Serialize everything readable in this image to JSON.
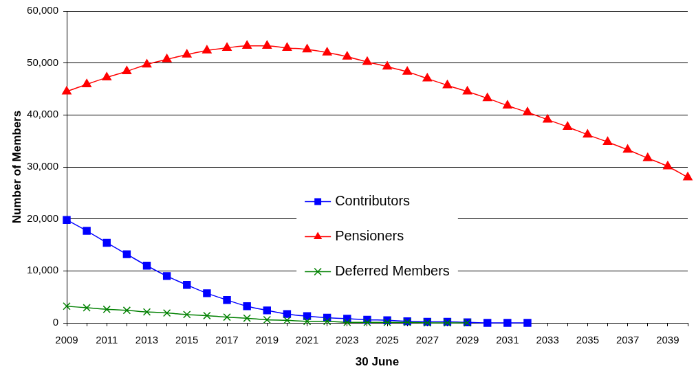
{
  "chart_data": {
    "type": "line",
    "xlabel": "30 June",
    "ylabel": "Number of Members",
    "xlim": [
      2009,
      2040
    ],
    "xticks": [
      2009,
      {
        "value": 2010,
        "label": null
      },
      2011,
      {
        "value": 2012,
        "label": null
      },
      2013,
      {
        "value": 2014,
        "label": null
      },
      2015,
      {
        "value": 2016,
        "label": null
      },
      2017,
      {
        "value": 2018,
        "label": null
      },
      2019,
      {
        "value": 2020,
        "label": null
      },
      2021,
      {
        "value": 2022,
        "label": null
      },
      2023,
      {
        "value": 2024,
        "label": null
      },
      2025,
      {
        "value": 2026,
        "label": null
      },
      2027,
      {
        "value": 2028,
        "label": null
      },
      2029,
      {
        "value": 2030,
        "label": null
      },
      2031,
      {
        "value": 2032,
        "label": null
      },
      2033,
      {
        "value": 2034,
        "label": null
      },
      2035,
      {
        "value": 2036,
        "label": null
      },
      2037,
      {
        "value": 2038,
        "label": null
      },
      2039,
      {
        "value": 2040,
        "label": null
      }
    ],
    "ylim": [
      0,
      60000
    ],
    "yticks": [
      {
        "value": 0,
        "label": "0"
      },
      {
        "value": 10000,
        "label": "10,000"
      },
      {
        "value": 20000,
        "label": "20,000"
      },
      {
        "value": 30000,
        "label": "30,000"
      },
      {
        "value": 40000,
        "label": "40,000"
      },
      {
        "value": 50000,
        "label": "50,000"
      },
      {
        "value": 60000,
        "label": "60,000"
      }
    ],
    "grid": "y",
    "legend": "bottom",
    "series": [
      {
        "name": "Contributors",
        "color": "#0000ff",
        "marker": "square",
        "x": [
          2009,
          2010,
          2011,
          2012,
          2013,
          2014,
          2015,
          2016,
          2017,
          2018,
          2019,
          2020,
          2021,
          2022,
          2023,
          2024,
          2025,
          2026,
          2027,
          2028,
          2029,
          2030,
          2031,
          2032
        ],
        "values": [
          19800,
          17700,
          15400,
          13200,
          11000,
          9000,
          7300,
          5700,
          4400,
          3200,
          2400,
          1700,
          1300,
          1000,
          800,
          600,
          500,
          300,
          200,
          200,
          100,
          0,
          0,
          0
        ]
      },
      {
        "name": "Pensioners",
        "color": "#ff0000",
        "marker": "triangle",
        "x": [
          2009,
          2010,
          2011,
          2012,
          2013,
          2014,
          2015,
          2016,
          2017,
          2018,
          2019,
          2020,
          2021,
          2022,
          2023,
          2024,
          2025,
          2026,
          2027,
          2028,
          2029,
          2030,
          2031,
          2032,
          2033,
          2034,
          2035,
          2036,
          2037,
          2038,
          2039,
          2040
        ],
        "values": [
          44500,
          45900,
          47200,
          48400,
          49700,
          50700,
          51600,
          52400,
          52900,
          53300,
          53300,
          52900,
          52600,
          52000,
          51200,
          50200,
          49300,
          48300,
          47000,
          45700,
          44500,
          43200,
          41800,
          40500,
          39100,
          37700,
          36200,
          34800,
          33300,
          31700,
          30100,
          28000
        ]
      },
      {
        "name": "Deferred Members",
        "color": "#008000",
        "marker": "cross",
        "x": [
          2009,
          2010,
          2011,
          2012,
          2013,
          2014,
          2015,
          2016,
          2017,
          2018,
          2019,
          2020,
          2021,
          2022,
          2023,
          2024,
          2025,
          2026,
          2027,
          2028,
          2029
        ],
        "values": [
          3200,
          2900,
          2600,
          2400,
          2100,
          1900,
          1600,
          1400,
          1100,
          900,
          600,
          500,
          300,
          300,
          100,
          100,
          100,
          100,
          0,
          0,
          0
        ]
      }
    ]
  }
}
